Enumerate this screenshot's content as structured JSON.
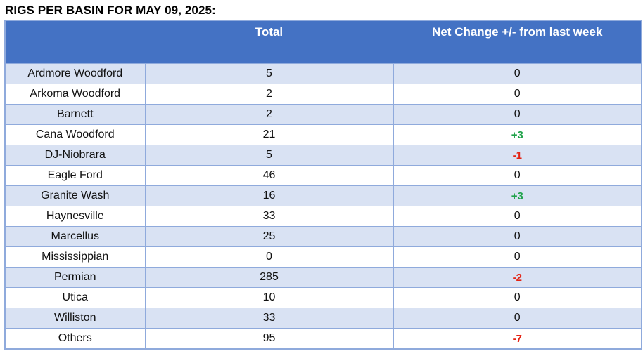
{
  "page": {
    "title": "RIGS PER BASIN FOR MAY 09, 2025:"
  },
  "table": {
    "columns": {
      "basin": "",
      "total": "Total",
      "net_change": "Net Change +/- from last week"
    },
    "rows": [
      {
        "basin": "Ardmore Woodford",
        "total": "5",
        "net_change": "0"
      },
      {
        "basin": "Arkoma Woodford",
        "total": "2",
        "net_change": "0"
      },
      {
        "basin": "Barnett",
        "total": "2",
        "net_change": "0"
      },
      {
        "basin": "Cana Woodford",
        "total": "21",
        "net_change": "+3"
      },
      {
        "basin": "DJ-Niobrara",
        "total": "5",
        "net_change": "-1"
      },
      {
        "basin": "Eagle Ford",
        "total": "46",
        "net_change": "0"
      },
      {
        "basin": "Granite Wash",
        "total": "16",
        "net_change": "+3"
      },
      {
        "basin": "Haynesville",
        "total": "33",
        "net_change": "0"
      },
      {
        "basin": "Marcellus",
        "total": "25",
        "net_change": "0"
      },
      {
        "basin": "Mississippian",
        "total": "0",
        "net_change": "0"
      },
      {
        "basin": "Permian",
        "total": "285",
        "net_change": "-2"
      },
      {
        "basin": "Utica",
        "total": "10",
        "net_change": "0"
      },
      {
        "basin": "Williston",
        "total": "33",
        "net_change": "0"
      },
      {
        "basin": "Others",
        "total": "95",
        "net_change": "-7"
      }
    ]
  },
  "colors": {
    "header_bg": "#4472C4",
    "row_alt_bg": "#D9E2F3",
    "border": "#8FAADC",
    "positive": "#1FA24A",
    "negative": "#E42313"
  }
}
